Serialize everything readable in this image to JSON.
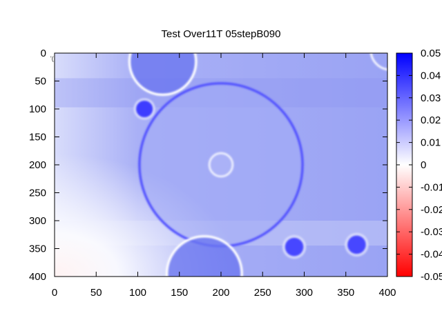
{
  "chart_data": {
    "type": "heatmap",
    "title": "Test Over11T 05stepB090",
    "xlabel": "",
    "ylabel": "",
    "xlim": [
      0,
      400
    ],
    "ylim": [
      400,
      0
    ],
    "x_ticks": [
      "0",
      "50",
      "100",
      "150",
      "200",
      "250",
      "300",
      "350",
      "400"
    ],
    "y_ticks": [
      "0",
      "50",
      "100",
      "150",
      "200",
      "250",
      "300",
      "350",
      "400"
    ],
    "colorbar": {
      "range": [
        -0.05,
        0.05
      ],
      "ticks": [
        "-0.05",
        "-0.04",
        "-0.03",
        "-0.02",
        "-0.01",
        "0",
        "0.01",
        "0.02",
        "0.03",
        "0.04",
        "0.05"
      ],
      "colors": {
        "low": "#ff0000",
        "mid": "#ffffff",
        "high": "#0000ff"
      }
    },
    "features": [
      {
        "kind": "ring",
        "cx": 200,
        "cy": 200,
        "r": 98,
        "value": 0.034
      },
      {
        "kind": "ring",
        "cx": 200,
        "cy": 200,
        "r": 14,
        "value": 0.008
      },
      {
        "kind": "ring",
        "cx": 130,
        "cy": 15,
        "r": 40,
        "value": 0.003
      },
      {
        "kind": "ring",
        "cx": 180,
        "cy": 395,
        "r": 45,
        "value": 0.002
      },
      {
        "kind": "spot",
        "cx": 108,
        "cy": 100,
        "r": 10,
        "value": 0.038
      },
      {
        "kind": "spot",
        "cx": 288,
        "cy": 347,
        "r": 11,
        "value": 0.036
      },
      {
        "kind": "spot",
        "cx": 363,
        "cy": 343,
        "r": 11,
        "value": 0.036
      }
    ],
    "stray_mark": "'("
  }
}
